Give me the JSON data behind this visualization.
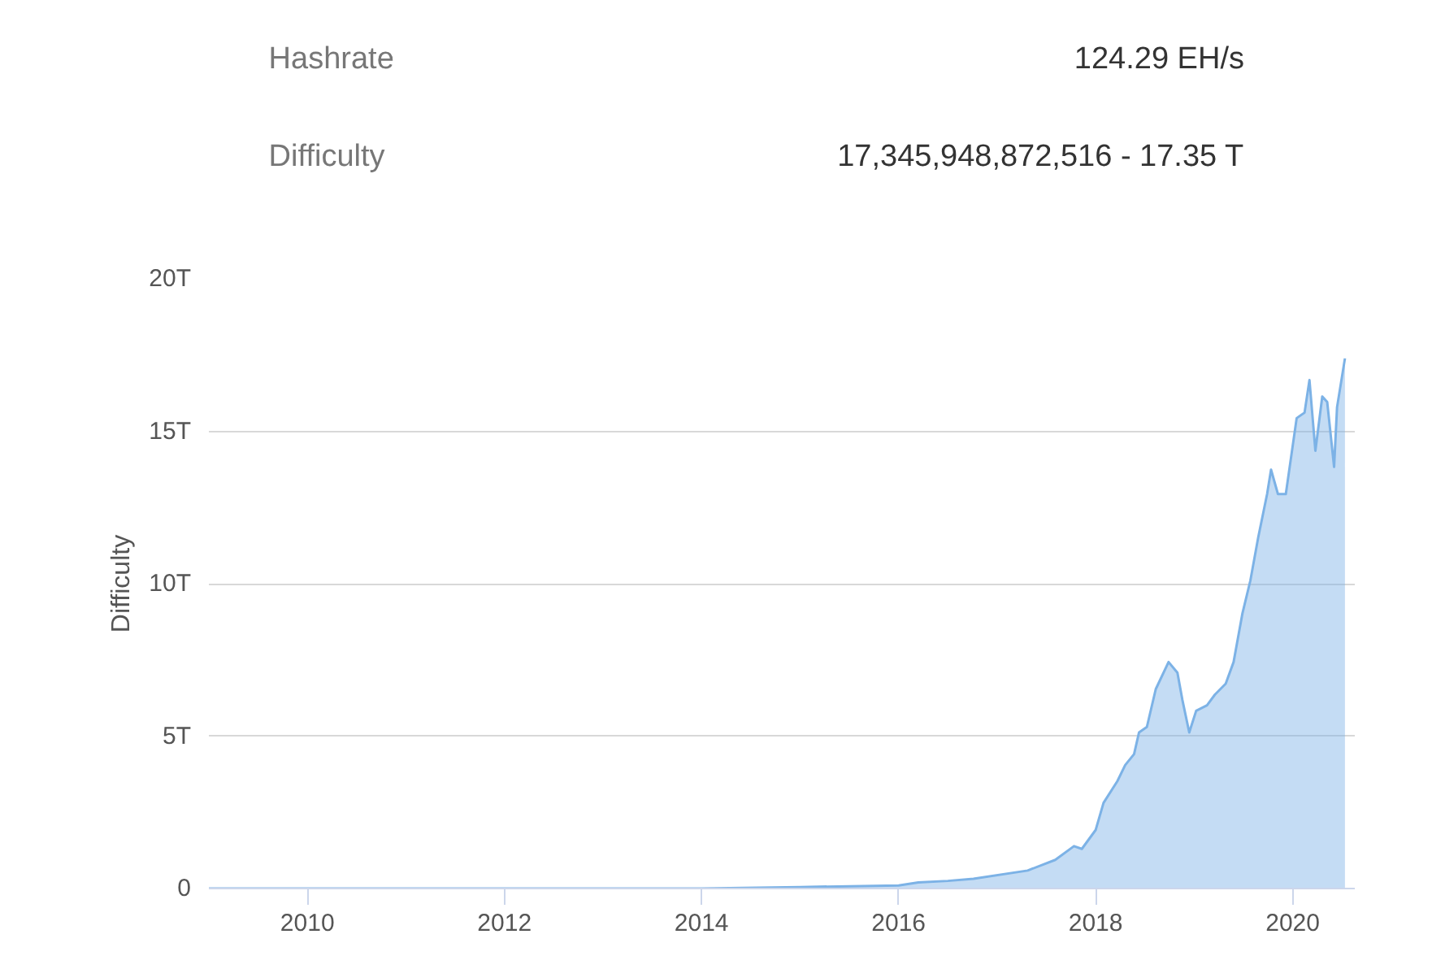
{
  "chart_data": {
    "type": "area",
    "annotations": [
      "Hashrate",
      "124.29 EH/s",
      "Difficulty",
      "17,345,948,872,516 - 17.35 T"
    ],
    "ylabel": "Difficulty",
    "x": [
      2009.0,
      2010.0,
      2012.0,
      2014.0,
      2015.0,
      2016.0,
      2016.2,
      2016.5,
      2016.76,
      2017.31,
      2017.59,
      2017.78,
      2017.86,
      2018.0,
      2018.08,
      2018.22,
      2018.3,
      2018.39,
      2018.44,
      2018.52,
      2018.61,
      2018.74,
      2018.83,
      2018.88,
      2018.95,
      2019.02,
      2019.13,
      2019.21,
      2019.32,
      2019.4,
      2019.49,
      2019.57,
      2019.65,
      2019.74,
      2019.78,
      2019.85,
      2019.93,
      2020.04,
      2020.12,
      2020.17,
      2020.23,
      2020.3,
      2020.35,
      2020.42,
      2020.45,
      2020.53
    ],
    "series": [
      {
        "color": "#7cb2e6",
        "values": [
          0,
          0,
          0,
          0,
          0.05,
          0.1,
          0.2,
          0.25,
          0.32,
          0.59,
          0.94,
          1.39,
          1.3,
          1.92,
          2.81,
          3.52,
          4.05,
          4.41,
          5.12,
          5.3,
          6.54,
          7.43,
          7.08,
          6.19,
          5.12,
          5.83,
          6.01,
          6.36,
          6.72,
          7.43,
          9.03,
          10.1,
          11.52,
          12.94,
          13.74,
          12.94,
          12.94,
          15.43,
          15.61,
          16.68,
          14.36,
          16.14,
          15.96,
          13.83,
          15.79,
          17.39
        ]
      }
    ],
    "xlim": [
      2009.0,
      2020.63
    ],
    "xticks": [
      2010,
      2012,
      2014,
      2016,
      2018,
      2020
    ],
    "ylim": [
      0,
      20
    ],
    "yticks": [
      {
        "value": 0,
        "label": "0"
      },
      {
        "value": 5,
        "label": "5T"
      },
      {
        "value": 10,
        "label": "10T"
      },
      {
        "value": 15,
        "label": "15T"
      },
      {
        "value": 20,
        "label": "20T"
      }
    ],
    "grid": "y"
  }
}
